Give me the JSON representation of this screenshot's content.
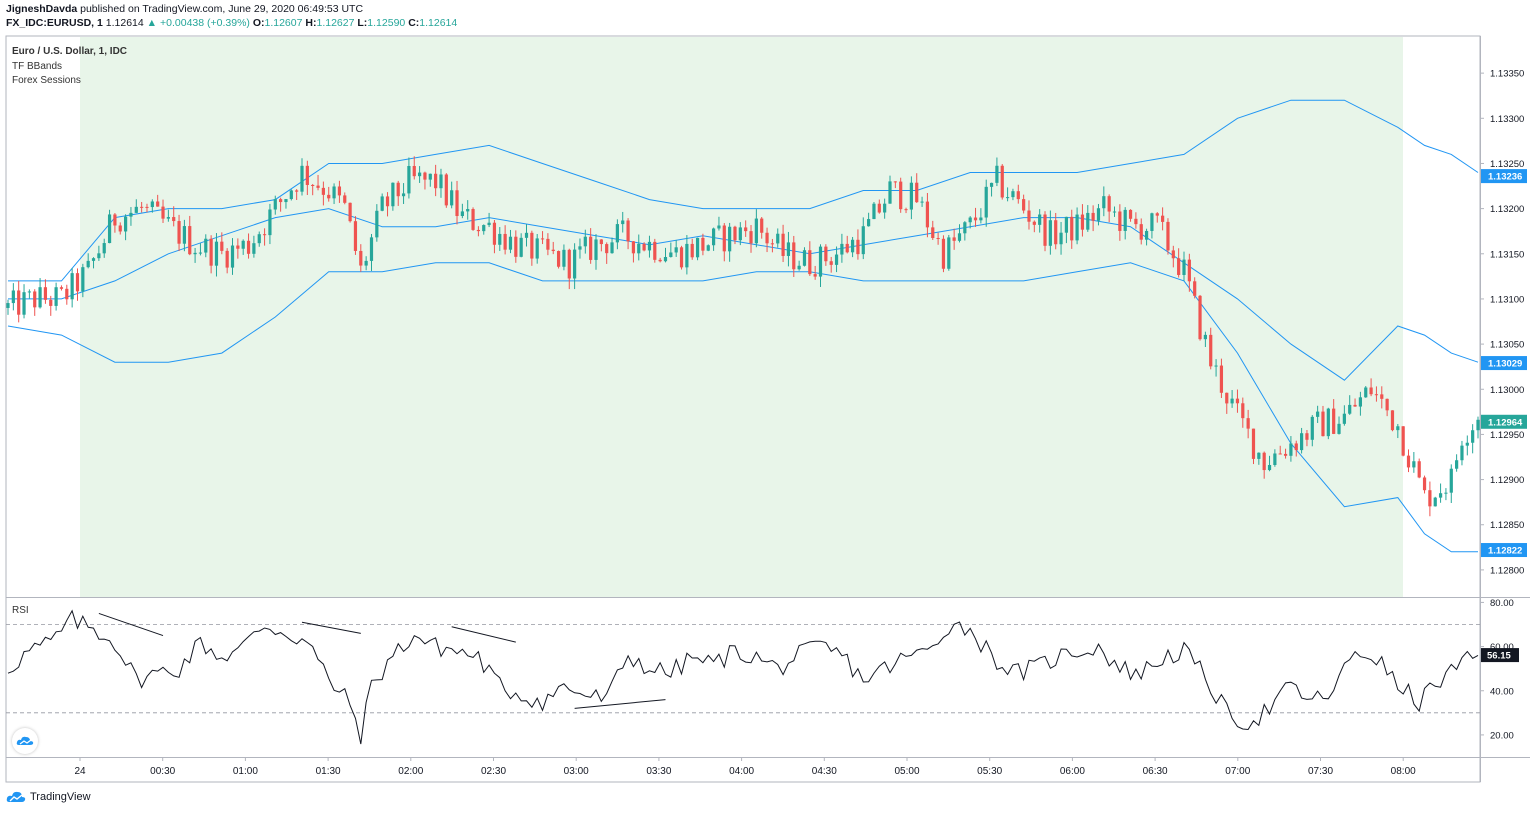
{
  "header": {
    "author": "JigneshDavda",
    "published_text": "published on TradingView.com, June 29, 2020 06:49:53 UTC",
    "symbol": "FX_IDC:EURUSD, 1",
    "last": "1.12614",
    "change": "+0.00438 (+0.39%)",
    "o_label": "O:",
    "o_value": "1.12607",
    "h_label": "H:",
    "h_value": "1.12627",
    "l_label": "L:",
    "l_value": "1.12590",
    "c_label": "C:",
    "c_value": "1.12614"
  },
  "legend": {
    "main": "Euro / U.S. Dollar, 1, IDC",
    "indicator1": "TF BBands",
    "indicator2": "Forex Sessions"
  },
  "rsi_label": "RSI",
  "footer": {
    "brand": "TradingView"
  },
  "colors": {
    "up": "#26a69a",
    "down": "#ef5350",
    "band": "#2196f3",
    "session_fill": "#e8f5e9",
    "rsi_line": "#131722"
  },
  "chart_data": [
    {
      "type": "candlestick",
      "title": "Euro / U.S. Dollar, 1, IDC",
      "x_tick_labels": [
        "24",
        "00:30",
        "01:00",
        "01:30",
        "02:00",
        "02:30",
        "03:00",
        "03:30",
        "04:00",
        "04:30",
        "05:00",
        "05:30",
        "06:00",
        "06:30",
        "07:00",
        "07:30",
        "08:00"
      ],
      "y_tick_labels": [
        "1.13350",
        "1.13300",
        "1.13250",
        "1.13200",
        "1.13150",
        "1.13100",
        "1.13050",
        "1.13000",
        "1.12950",
        "1.12900",
        "1.12850",
        "1.12800"
      ],
      "ylim": [
        1.1277,
        1.1339
      ],
      "price_badges": [
        {
          "value": "1.13236",
          "price": 1.13236,
          "color": "#2196f3"
        },
        {
          "value": "1.13029",
          "price": 1.13029,
          "color": "#2196f3"
        },
        {
          "value": "1.12964",
          "price": 1.12964,
          "color": "#26a69a"
        },
        {
          "value": "1.12822",
          "price": 1.12822,
          "color": "#2196f3"
        }
      ],
      "close_path": {
        "t": [
          0,
          5,
          10,
          15,
          20,
          25,
          30,
          35,
          40,
          45,
          50,
          55,
          60,
          63,
          66,
          70,
          75,
          80,
          85,
          90,
          95,
          100,
          105,
          110,
          115,
          120,
          125,
          130,
          135,
          140,
          145,
          150,
          155,
          160,
          165,
          170,
          175,
          180,
          185,
          190,
          195,
          200,
          205,
          210,
          215,
          220,
          225,
          230,
          235,
          240,
          245,
          250,
          255,
          260,
          265,
          270,
          272,
          275
        ],
        "price": [
          1.1309,
          1.131,
          1.131,
          1.1313,
          1.1319,
          1.132,
          1.1318,
          1.1316,
          1.1315,
          1.1316,
          1.132,
          1.1324,
          1.1322,
          1.132,
          1.1313,
          1.132,
          1.1323,
          1.1323,
          1.1319,
          1.1318,
          1.1316,
          1.1315,
          1.1314,
          1.1316,
          1.1317,
          1.1316,
          1.1315,
          1.1316,
          1.1317,
          1.1318,
          1.1315,
          1.1314,
          1.1315,
          1.1317,
          1.1322,
          1.1321,
          1.1315,
          1.1318,
          1.1323,
          1.132,
          1.1317,
          1.1318,
          1.132,
          1.1318,
          1.1318,
          1.1313,
          1.1303,
          1.1297,
          1.1292,
          1.1294,
          1.1296,
          1.1297,
          1.13,
          1.1296,
          1.1288,
          1.129,
          1.1295,
          1.1297
        ]
      },
      "bollinger": {
        "t": [
          0,
          10,
          20,
          30,
          40,
          50,
          60,
          70,
          80,
          90,
          100,
          110,
          120,
          130,
          140,
          150,
          160,
          170,
          180,
          190,
          200,
          210,
          220,
          230,
          240,
          250,
          260,
          265,
          270,
          275
        ],
        "upper": [
          1.1312,
          1.1312,
          1.1319,
          1.132,
          1.132,
          1.1321,
          1.1325,
          1.1325,
          1.1326,
          1.1327,
          1.1325,
          1.1323,
          1.1321,
          1.132,
          1.132,
          1.132,
          1.1322,
          1.1322,
          1.1324,
          1.1324,
          1.1324,
          1.1325,
          1.1326,
          1.133,
          1.1332,
          1.1332,
          1.1329,
          1.1327,
          1.1326,
          1.1324
        ],
        "middle": [
          1.131,
          1.131,
          1.1312,
          1.1315,
          1.1317,
          1.1319,
          1.132,
          1.1318,
          1.1318,
          1.1319,
          1.1318,
          1.1317,
          1.1316,
          1.1317,
          1.1316,
          1.1315,
          1.1316,
          1.1317,
          1.1318,
          1.1319,
          1.1319,
          1.1318,
          1.1314,
          1.131,
          1.1305,
          1.1301,
          1.1307,
          1.1306,
          1.1304,
          1.1303
        ],
        "lower": [
          1.1307,
          1.1306,
          1.1303,
          1.1303,
          1.1304,
          1.1308,
          1.1313,
          1.1313,
          1.1314,
          1.1314,
          1.1312,
          1.1312,
          1.1312,
          1.1312,
          1.1313,
          1.1313,
          1.1312,
          1.1312,
          1.1312,
          1.1312,
          1.1313,
          1.1314,
          1.1312,
          1.1304,
          1.1294,
          1.1287,
          1.1288,
          1.1284,
          1.1282,
          1.1282
        ]
      }
    },
    {
      "type": "line",
      "title": "RSI",
      "y_tick_labels": [
        "80.00",
        "60.00",
        "40.00",
        "20.00"
      ],
      "ylim": [
        10,
        82
      ],
      "bands": [
        70,
        30
      ],
      "last_value_label": "56.15",
      "last_value": 56.15,
      "t": [
        0,
        4,
        8,
        12,
        16,
        20,
        24,
        28,
        32,
        36,
        40,
        44,
        48,
        52,
        56,
        60,
        64,
        66,
        68,
        72,
        76,
        80,
        84,
        88,
        92,
        96,
        100,
        104,
        108,
        112,
        116,
        120,
        124,
        128,
        132,
        136,
        140,
        144,
        148,
        152,
        156,
        160,
        164,
        168,
        172,
        176,
        180,
        184,
        188,
        192,
        196,
        200,
        204,
        208,
        212,
        216,
        220,
        224,
        228,
        232,
        236,
        240,
        244,
        248,
        252,
        256,
        260,
        264,
        268,
        272,
        275
      ],
      "values": [
        50,
        58,
        62,
        72,
        68,
        62,
        45,
        48,
        50,
        62,
        55,
        60,
        70,
        66,
        62,
        45,
        34,
        20,
        42,
        56,
        65,
        60,
        58,
        55,
        42,
        38,
        35,
        42,
        38,
        36,
        56,
        50,
        48,
        55,
        52,
        58,
        55,
        50,
        56,
        60,
        56,
        45,
        50,
        55,
        58,
        70,
        68,
        56,
        48,
        50,
        55,
        58,
        60,
        50,
        48,
        55,
        58,
        46,
        30,
        25,
        32,
        42,
        35,
        40,
        58,
        55,
        42,
        35,
        45,
        52,
        56
      ]
    }
  ]
}
